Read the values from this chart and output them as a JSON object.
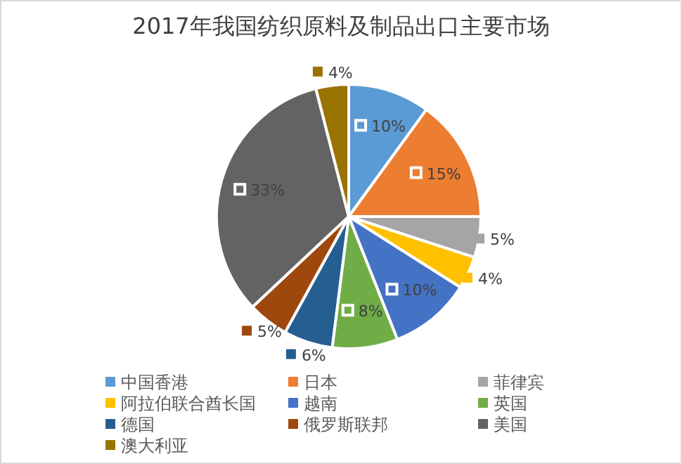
{
  "chart_data": {
    "type": "pie",
    "title": "2017年我国纺织原料及制品出口主要市场",
    "categories": [
      "中国香港",
      "日本",
      "菲律宾",
      "阿拉伯联合酋长国",
      "越南",
      "英国",
      "德国",
      "俄罗斯联邦",
      "美国",
      "澳大利亚"
    ],
    "values": [
      10,
      15,
      5,
      4,
      10,
      8,
      6,
      5,
      33,
      4
    ],
    "colors": [
      "#5b9bd5",
      "#ed7d31",
      "#a5a5a5",
      "#ffc000",
      "#4472c4",
      "#70ad47",
      "#255e91",
      "#9e480e",
      "#636363",
      "#997300"
    ],
    "value_labels": [
      "10%",
      "15%",
      "5%",
      "4%",
      "10%",
      "8%",
      "6%",
      "5%",
      "33%",
      "4%"
    ],
    "legend": "bottom"
  }
}
